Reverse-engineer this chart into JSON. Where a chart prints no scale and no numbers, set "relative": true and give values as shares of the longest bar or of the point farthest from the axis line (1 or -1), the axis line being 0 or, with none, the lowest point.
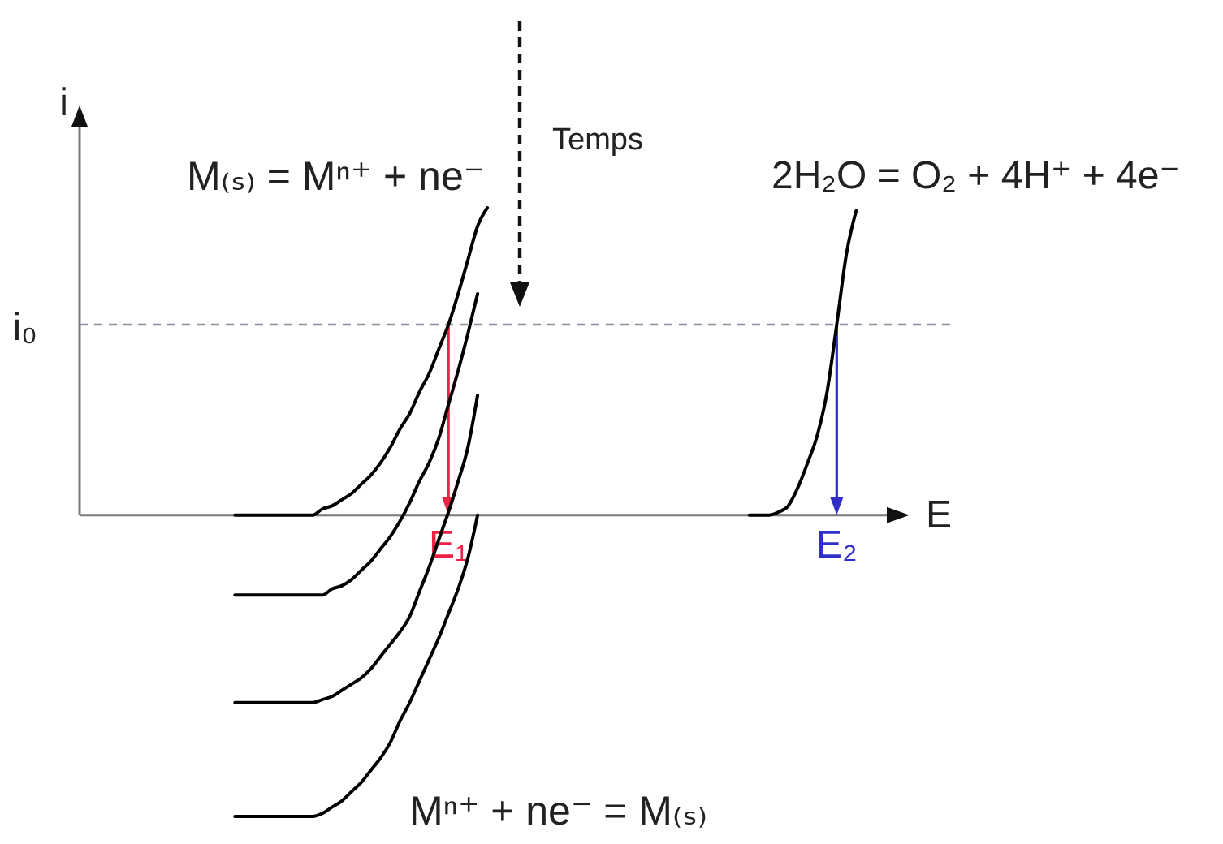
{
  "chart_data": {
    "type": "line",
    "relative": true,
    "xlabel": "E",
    "ylabel": "i",
    "categories": [
      null,
      null,
      null,
      null,
      null,
      null,
      null,
      null,
      null,
      null,
      null,
      null,
      null,
      null,
      null,
      null,
      null,
      null,
      null,
      null,
      null,
      null,
      null,
      null,
      null,
      null,
      null,
      null,
      null,
      null,
      null,
      null,
      null,
      null,
      null,
      null,
      null,
      null,
      "E₁",
      null,
      null,
      null,
      null,
      null,
      null,
      null,
      null,
      null,
      null,
      null,
      null,
      null,
      null,
      null,
      null,
      null,
      null,
      null,
      null,
      null,
      null,
      null,
      null,
      null,
      null,
      null,
      null,
      null,
      null,
      null,
      null,
      null,
      null,
      null,
      null,
      null,
      null,
      null,
      "E₂",
      null,
      null,
      null,
      null,
      null,
      null,
      null
    ],
    "series": [
      {
        "color": "#000000",
        "values": [
          null,
          null,
          null,
          null,
          null,
          null,
          null,
          null,
          null,
          null,
          null,
          null,
          null,
          null,
          null,
          null,
          0,
          0,
          0,
          0,
          0,
          0,
          0,
          0,
          0,
          0.02,
          0.03,
          0.05,
          0.07,
          0.1,
          0.13,
          0.17,
          0.22,
          0.28,
          0.33,
          0.4,
          0.46,
          0.54,
          0.62,
          0.72,
          0.83,
          0.94,
          1,
          null,
          null,
          null,
          null,
          null,
          null,
          null,
          null,
          null,
          null,
          null,
          null,
          null,
          null,
          null,
          null,
          null,
          null,
          null,
          null,
          null,
          null,
          null,
          null,
          null,
          null,
          null,
          null,
          null,
          null,
          null,
          null,
          null,
          null,
          null,
          null,
          null,
          null,
          null,
          null,
          null,
          null,
          null
        ]
      },
      {
        "color": "#000000",
        "values": [
          null,
          null,
          null,
          null,
          null,
          null,
          null,
          null,
          null,
          null,
          null,
          null,
          null,
          null,
          null,
          null,
          -0.26,
          -0.26,
          -0.26,
          -0.26,
          -0.26,
          -0.26,
          -0.26,
          -0.26,
          -0.26,
          -0.26,
          -0.24,
          -0.23,
          -0.21,
          -0.18,
          -0.15,
          -0.11,
          -0.07,
          -0.02,
          0.04,
          0.11,
          0.17,
          0.25,
          0.36,
          0.47,
          0.59,
          0.72,
          null,
          null,
          null,
          null,
          null,
          null,
          null,
          null,
          null,
          null,
          null,
          null,
          null,
          null,
          null,
          null,
          null,
          null,
          null,
          null,
          null,
          null,
          null,
          null,
          null,
          null,
          null,
          null,
          null,
          null,
          null,
          null,
          null,
          null,
          null,
          null,
          null,
          null,
          null,
          null,
          null,
          null,
          null,
          null
        ]
      },
      {
        "color": "#000000",
        "values": [
          null,
          null,
          null,
          null,
          null,
          null,
          null,
          null,
          null,
          null,
          null,
          null,
          null,
          null,
          null,
          null,
          -0.61,
          -0.61,
          -0.61,
          -0.61,
          -0.61,
          -0.61,
          -0.61,
          -0.61,
          -0.61,
          -0.6,
          -0.59,
          -0.57,
          -0.55,
          -0.53,
          -0.5,
          -0.46,
          -0.42,
          -0.38,
          -0.33,
          -0.25,
          -0.17,
          -0.08,
          0.01,
          0.11,
          0.22,
          0.39,
          null,
          null,
          null,
          null,
          null,
          null,
          null,
          null,
          null,
          null,
          null,
          null,
          null,
          null,
          null,
          null,
          null,
          null,
          null,
          null,
          null,
          null,
          null,
          null,
          null,
          null,
          null,
          null,
          null,
          null,
          null,
          null,
          null,
          null,
          null,
          null,
          null,
          null,
          null,
          null,
          null,
          null,
          null,
          null
        ]
      },
      {
        "color": "#000000",
        "values": [
          null,
          null,
          null,
          null,
          null,
          null,
          null,
          null,
          null,
          null,
          null,
          null,
          null,
          null,
          null,
          null,
          -0.98,
          -0.98,
          -0.98,
          -0.98,
          -0.98,
          -0.98,
          -0.98,
          -0.98,
          -0.98,
          -0.97,
          -0.95,
          -0.93,
          -0.9,
          -0.87,
          -0.83,
          -0.79,
          -0.74,
          -0.67,
          -0.61,
          -0.54,
          -0.47,
          -0.4,
          -0.32,
          -0.24,
          -0.14,
          0,
          null,
          null,
          null,
          null,
          null,
          null,
          null,
          null,
          null,
          null,
          null,
          null,
          null,
          null,
          null,
          null,
          null,
          null,
          null,
          null,
          null,
          null,
          null,
          null,
          null,
          null,
          null,
          null,
          null,
          null,
          null,
          null,
          null,
          null,
          null,
          null,
          null,
          null,
          null,
          null,
          null,
          null,
          null,
          null
        ]
      },
      {
        "color": "#000000",
        "values": [
          null,
          null,
          null,
          null,
          null,
          null,
          null,
          null,
          null,
          null,
          null,
          null,
          null,
          null,
          null,
          null,
          null,
          null,
          null,
          null,
          null,
          null,
          null,
          null,
          null,
          null,
          null,
          null,
          null,
          null,
          null,
          null,
          null,
          null,
          null,
          null,
          null,
          null,
          null,
          null,
          null,
          null,
          null,
          null,
          null,
          null,
          null,
          null,
          null,
          null,
          null,
          null,
          null,
          null,
          null,
          null,
          null,
          null,
          null,
          null,
          null,
          null,
          null,
          null,
          null,
          null,
          null,
          null,
          null,
          0,
          0,
          0,
          0.01,
          0.03,
          0.09,
          0.17,
          0.26,
          0.4,
          0.62,
          0.85,
          0.99,
          null,
          null,
          null,
          null,
          null
        ]
      }
    ],
    "ref_lines": [
      {
        "axis": "y",
        "value": 0.62,
        "label": "i₀",
        "color": "#8a90a0",
        "line_style": "dashed"
      },
      {
        "axis": "x",
        "value": "E₁",
        "color": "#ee2244"
      },
      {
        "axis": "x",
        "value": "E₂",
        "color": "#3030c8"
      }
    ],
    "annotations": [
      "M₍ₛ₎ = Mⁿ⁺ + ne⁻",
      "Temps",
      "2H₂O = O₂ + 4H⁺ + 4e⁻",
      "Mⁿ⁺ + ne⁻ = M₍ₛ₎"
    ]
  }
}
